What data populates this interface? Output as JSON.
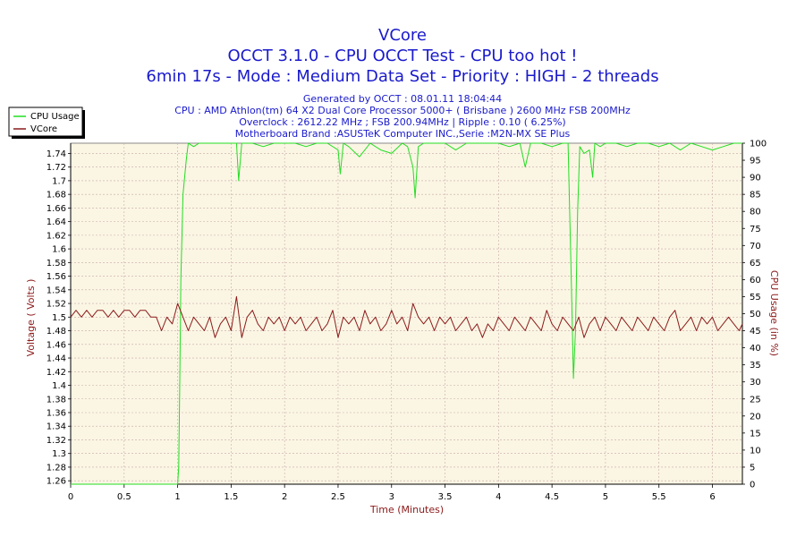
{
  "window": {
    "title": "VCore"
  },
  "header": {
    "title": "VCore",
    "subtitle1": "OCCT 3.1.0 - CPU OCCT Test - CPU too hot !",
    "subtitle2": "6min 17s - Mode : Medium Data Set - Priority : HIGH - 2 threads",
    "info": [
      "Generated by OCCT : 08.01.11 18:04:44",
      "CPU : AMD Athlon(tm) 64 X2 Dual Core Processor 5000+ ( Brisbane ) 2600 MHz FSB 200MHz",
      "Overclock : 2612.22 MHz ; FSB 200.94MHz | Ripple : 0.10 ( 6.25%)",
      "Motherboard Brand :ASUSTeK Computer INC.,Serie :M2N-MX SE Plus"
    ]
  },
  "colors": {
    "cpu_usage": "#22dd22",
    "vcore": "#8b1a1a",
    "plot_bg": "#fbf6e4",
    "title": "#1a1acc",
    "axis_label": "#8b1a1a"
  },
  "chart_data": {
    "type": "line",
    "title": "VCore",
    "xlabel": "Time (Minutes)",
    "ylabel": "Voltage ( Volts )",
    "y2label": "CPU Usage (in %)",
    "xlim": [
      0,
      6.28
    ],
    "ylim": [
      1.255,
      1.755
    ],
    "y2lim": [
      0,
      100
    ],
    "xticks": [
      "0",
      "0.5",
      "1",
      "1.5",
      "2",
      "2.5",
      "3",
      "3.5",
      "4",
      "4.5",
      "5",
      "5.5",
      "6"
    ],
    "yticks": [
      "1.26",
      "1.28",
      "1.3",
      "1.32",
      "1.34",
      "1.36",
      "1.38",
      "1.4",
      "1.42",
      "1.44",
      "1.46",
      "1.48",
      "1.5",
      "1.52",
      "1.54",
      "1.56",
      "1.58",
      "1.6",
      "1.62",
      "1.64",
      "1.66",
      "1.68",
      "1.7",
      "1.72",
      "1.74"
    ],
    "y2ticks": [
      "0",
      "5",
      "10",
      "15",
      "20",
      "25",
      "30",
      "35",
      "40",
      "45",
      "50",
      "55",
      "60",
      "65",
      "70",
      "75",
      "80",
      "85",
      "90",
      "95",
      "100"
    ],
    "grid": true,
    "legend_position": "top-left",
    "series": [
      {
        "name": "CPU Usage",
        "axis": "right",
        "x": [
          0,
          0.2,
          0.4,
          0.6,
          0.8,
          0.98,
          1.0,
          1.01,
          1.02,
          1.03,
          1.05,
          1.08,
          1.1,
          1.15,
          1.2,
          1.3,
          1.4,
          1.5,
          1.55,
          1.57,
          1.6,
          1.7,
          1.8,
          1.9,
          2.0,
          2.1,
          2.2,
          2.3,
          2.4,
          2.5,
          2.52,
          2.55,
          2.6,
          2.7,
          2.8,
          2.9,
          3.0,
          3.1,
          3.15,
          3.2,
          3.22,
          3.25,
          3.3,
          3.4,
          3.5,
          3.6,
          3.7,
          3.8,
          3.9,
          4.0,
          4.1,
          4.2,
          4.25,
          4.3,
          4.4,
          4.5,
          4.6,
          4.65,
          4.68,
          4.7,
          4.72,
          4.74,
          4.76,
          4.8,
          4.85,
          4.88,
          4.9,
          4.95,
          5.0,
          5.1,
          5.2,
          5.3,
          5.4,
          5.5,
          5.6,
          5.7,
          5.8,
          5.9,
          6.0,
          6.1,
          6.2,
          6.28
        ],
        "values": [
          0,
          0,
          0,
          0,
          0,
          0,
          0,
          5,
          30,
          60,
          85,
          95,
          100,
          99,
          100,
          100,
          100,
          100,
          100,
          89,
          100,
          100,
          99,
          100,
          100,
          100,
          99,
          100,
          100,
          98,
          91,
          100,
          99,
          96,
          100,
          98,
          97,
          100,
          99,
          93,
          84,
          99,
          100,
          100,
          100,
          98,
          100,
          100,
          100,
          100,
          99,
          100,
          93,
          100,
          100,
          99,
          100,
          100,
          60,
          31,
          45,
          80,
          99,
          97,
          98,
          90,
          100,
          99,
          100,
          100,
          99,
          100,
          100,
          99,
          100,
          98,
          100,
          99,
          98,
          99,
          100,
          100
        ]
      },
      {
        "name": "VCore",
        "axis": "left",
        "x": [
          0,
          0.05,
          0.1,
          0.15,
          0.2,
          0.25,
          0.3,
          0.35,
          0.4,
          0.45,
          0.5,
          0.55,
          0.6,
          0.65,
          0.7,
          0.75,
          0.8,
          0.85,
          0.9,
          0.95,
          1.0,
          1.05,
          1.1,
          1.15,
          1.2,
          1.25,
          1.3,
          1.35,
          1.4,
          1.45,
          1.5,
          1.55,
          1.6,
          1.65,
          1.7,
          1.75,
          1.8,
          1.85,
          1.9,
          1.95,
          2.0,
          2.05,
          2.1,
          2.15,
          2.2,
          2.25,
          2.3,
          2.35,
          2.4,
          2.45,
          2.5,
          2.55,
          2.6,
          2.65,
          2.7,
          2.75,
          2.8,
          2.85,
          2.9,
          2.95,
          3.0,
          3.05,
          3.1,
          3.15,
          3.2,
          3.25,
          3.3,
          3.35,
          3.4,
          3.45,
          3.5,
          3.55,
          3.6,
          3.65,
          3.7,
          3.75,
          3.8,
          3.85,
          3.9,
          3.95,
          4.0,
          4.05,
          4.1,
          4.15,
          4.2,
          4.25,
          4.3,
          4.35,
          4.4,
          4.45,
          4.5,
          4.55,
          4.6,
          4.65,
          4.7,
          4.75,
          4.8,
          4.85,
          4.9,
          4.95,
          5.0,
          5.05,
          5.1,
          5.15,
          5.2,
          5.25,
          5.3,
          5.35,
          5.4,
          5.45,
          5.5,
          5.55,
          5.6,
          5.65,
          5.7,
          5.75,
          5.8,
          5.85,
          5.9,
          5.95,
          6.0,
          6.05,
          6.1,
          6.15,
          6.2,
          6.25,
          6.28
        ],
        "values": [
          1.5,
          1.51,
          1.5,
          1.51,
          1.5,
          1.51,
          1.51,
          1.5,
          1.51,
          1.5,
          1.51,
          1.51,
          1.5,
          1.51,
          1.51,
          1.5,
          1.5,
          1.48,
          1.5,
          1.49,
          1.52,
          1.5,
          1.48,
          1.5,
          1.49,
          1.48,
          1.5,
          1.47,
          1.49,
          1.5,
          1.48,
          1.53,
          1.47,
          1.5,
          1.51,
          1.49,
          1.48,
          1.5,
          1.49,
          1.5,
          1.48,
          1.5,
          1.49,
          1.5,
          1.48,
          1.49,
          1.5,
          1.48,
          1.49,
          1.51,
          1.47,
          1.5,
          1.49,
          1.5,
          1.48,
          1.51,
          1.49,
          1.5,
          1.48,
          1.49,
          1.51,
          1.49,
          1.5,
          1.48,
          1.52,
          1.5,
          1.49,
          1.5,
          1.48,
          1.5,
          1.49,
          1.5,
          1.48,
          1.49,
          1.5,
          1.48,
          1.49,
          1.47,
          1.49,
          1.48,
          1.5,
          1.49,
          1.48,
          1.5,
          1.49,
          1.48,
          1.5,
          1.49,
          1.48,
          1.51,
          1.49,
          1.48,
          1.5,
          1.49,
          1.48,
          1.5,
          1.47,
          1.49,
          1.5,
          1.48,
          1.5,
          1.49,
          1.48,
          1.5,
          1.49,
          1.48,
          1.5,
          1.49,
          1.48,
          1.5,
          1.49,
          1.48,
          1.5,
          1.51,
          1.48,
          1.49,
          1.5,
          1.48,
          1.5,
          1.49,
          1.5,
          1.48,
          1.49,
          1.5,
          1.49,
          1.48,
          1.49
        ]
      }
    ]
  }
}
